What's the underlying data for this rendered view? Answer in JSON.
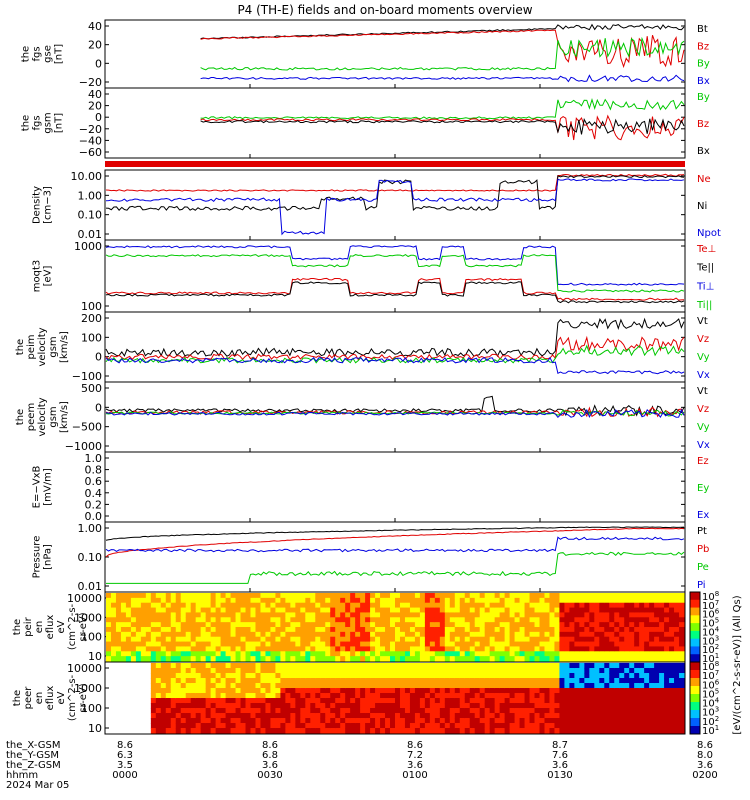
{
  "chart_data": {
    "type": "line",
    "title": "P4 (TH-E) fields and on-board moments overview",
    "x_ticks": [
      "0000",
      "0030",
      "0100",
      "0130",
      "0200"
    ],
    "ephemeris": {
      "labels": [
        "the_X-GSM",
        "the_Y-GSM",
        "the_Z-GSM",
        "hhmm",
        "2024 Mar 05"
      ],
      "X": [
        "8.6",
        "8.6",
        "8.6",
        "8.7",
        "8.6"
      ],
      "Y": [
        "6.3",
        "6.8",
        "7.2",
        "7.6",
        "8.0"
      ],
      "Z": [
        "3.5",
        "3.6",
        "3.6",
        "3.6",
        "3.6"
      ]
    },
    "panels": [
      {
        "id": "fgs_gse",
        "ylabel": "the\nfgs\ngse\n[nT]",
        "yticks": [
          "40",
          "20",
          "0",
          "−20"
        ],
        "ylim": [
          -25,
          55
        ],
        "series": [
          {
            "name": "Bt",
            "color": "#000000"
          },
          {
            "name": "Bz",
            "color": "#e00000"
          },
          {
            "name": "By",
            "color": "#00c800"
          },
          {
            "name": "Bx",
            "color": "#0000e0"
          }
        ]
      },
      {
        "id": "fgs_gsm",
        "ylabel": "the\nfgs\ngsm\n[nT]",
        "yticks": [
          "40",
          "20",
          "0",
          "−20",
          "−40",
          "−60"
        ],
        "ylim": [
          -70,
          50
        ],
        "series": [
          {
            "name": "By",
            "color": "#00c800"
          },
          {
            "name": "Bz",
            "color": "#e00000"
          },
          {
            "name": "Bx",
            "color": "#000000"
          }
        ]
      },
      {
        "id": "density",
        "ylabel": "Density\n[cm−3]",
        "yticks": [
          "10.00",
          "1.00",
          "0.10",
          "0.01"
        ],
        "log": true,
        "ylim": [
          0.007,
          30
        ],
        "series": [
          {
            "name": "Ne",
            "color": "#e00000"
          },
          {
            "name": "Ni",
            "color": "#000000"
          },
          {
            "name": "Npot",
            "color": "#0000e0"
          }
        ]
      },
      {
        "id": "temp",
        "ylabel": "moqt3\n[eV]",
        "yticks": [
          "1000",
          "100"
        ],
        "log": true,
        "ylim": [
          40,
          5000
        ],
        "series": [
          {
            "name": "Te⊥",
            "color": "#e00000"
          },
          {
            "name": "Te||",
            "color": "#000000"
          },
          {
            "name": "Ti⊥",
            "color": "#0000e0"
          },
          {
            "name": "Ti||",
            "color": "#00c800"
          }
        ]
      },
      {
        "id": "peim",
        "ylabel": "the\npeim\nvelocity\ngsm\n[km/s]",
        "yticks": [
          "200",
          "100",
          "0",
          "−100"
        ],
        "ylim": [
          -130,
          260
        ],
        "series": [
          {
            "name": "Vt",
            "color": "#000000"
          },
          {
            "name": "Vz",
            "color": "#e00000"
          },
          {
            "name": "Vy",
            "color": "#00c800"
          },
          {
            "name": "Vx",
            "color": "#0000e0"
          }
        ]
      },
      {
        "id": "peem",
        "ylabel": "the\npeem\nvelocity\ngsm\n[km/s]",
        "yticks": [
          "500",
          "0",
          "−500",
          "−1000"
        ],
        "ylim": [
          -1050,
          800
        ],
        "series": [
          {
            "name": "Vt",
            "color": "#000000"
          },
          {
            "name": "Vz",
            "color": "#e00000"
          },
          {
            "name": "Vy",
            "color": "#00c800"
          },
          {
            "name": "Vx",
            "color": "#0000e0"
          }
        ]
      },
      {
        "id": "efield",
        "ylabel": "E=−VxB\n[mV/m]",
        "yticks": [
          "1.0",
          "0.8",
          "0.6",
          "0.4",
          "0.2",
          "0.0"
        ],
        "ylim": [
          0,
          1
        ],
        "series": [
          {
            "name": "Ez",
            "color": "#e00000"
          },
          {
            "name": "Ey",
            "color": "#00c800"
          },
          {
            "name": "Ex",
            "color": "#0000e0"
          }
        ]
      },
      {
        "id": "pressure",
        "ylabel": "Pressure\n[nPa]",
        "yticks": [
          "1.00",
          "0.10",
          "0.01"
        ],
        "log": true,
        "ylim": [
          0.006,
          1.6
        ],
        "series": [
          {
            "name": "Pt",
            "color": "#000000"
          },
          {
            "name": "Pb",
            "color": "#e00000"
          },
          {
            "name": "Pe",
            "color": "#00c800"
          },
          {
            "name": "Pi",
            "color": "#0000e0"
          }
        ]
      },
      {
        "id": "peir",
        "ylabel": "the\npeir\nen\neflux\neV\n(cm^2-s-\nsr-eV)",
        "yticks": [
          "10000",
          "1000",
          "100",
          "10"
        ],
        "spectrogram": true
      },
      {
        "id": "peer",
        "ylabel": "the\npeer\nen\neflux\neV\n(cm^2-s-\nsr-eV)",
        "yticks": [
          "10000",
          "1000",
          "100",
          "10"
        ],
        "spectrogram": true
      }
    ],
    "colorbar": {
      "label": "[eV/(cm^2-s-sr-eV)] (All Qs)",
      "ticks": [
        "10",
        "10",
        "10",
        "10",
        "10",
        "10",
        "10",
        "10",
        "10"
      ],
      "exponents": [
        "8",
        "7",
        "6",
        "5",
        "4",
        "3",
        "2",
        "1",
        "0"
      ],
      "colors": [
        "#0000b0",
        "#0060ff",
        "#00c0ff",
        "#00ff80",
        "#80ff00",
        "#ffff00",
        "#ffa000",
        "#ff2000",
        "#c00000"
      ]
    }
  }
}
